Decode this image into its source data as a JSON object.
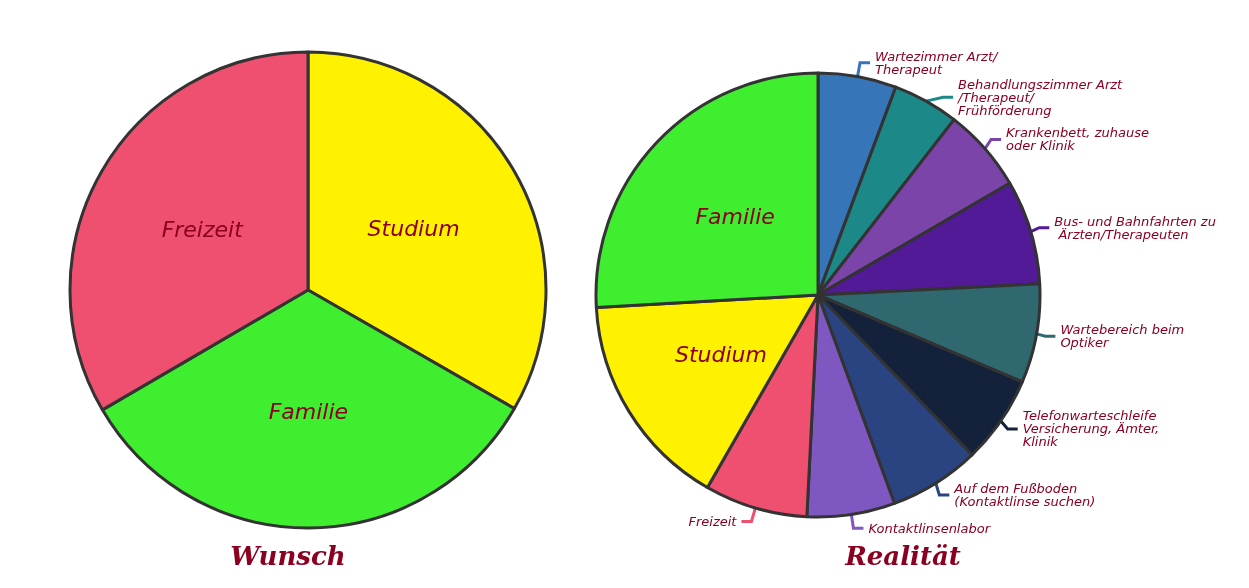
{
  "chart_data": [
    {
      "type": "pie",
      "title": "Wunsch",
      "categories": [
        "Studium",
        "Familie",
        "Freizeit"
      ],
      "values": [
        33.3,
        33.3,
        33.4
      ],
      "colors": [
        "#fff200",
        "#40ee30",
        "#f05070"
      ]
    },
    {
      "type": "pie",
      "title": "Realität",
      "categories": [
        "Wartezimmer Arzt/Therapeut",
        "Behandlungszimmer Arzt/Therapeut/Frühförderung",
        "Krankenbett, zuhause oder Klinik",
        "Bus- und Bahnfahrten zu Ärzten/Therapeuten",
        "Wartebereich beim Optiker",
        "Telefonwarteschleife Versicherung, Ämter, Klinik",
        "Auf dem Fußboden (Kontaktlinse suchen)",
        "Kontaktlinsenlabor",
        "Freizeit",
        "Studium",
        "Familie"
      ],
      "values": [
        5.7,
        4.8,
        6.1,
        7.6,
        7.2,
        6.4,
        6.6,
        6.4,
        7.5,
        15.8,
        25.9
      ],
      "colors": [
        "#3575b8",
        "#1c8888",
        "#7a44a8",
        "#521a96",
        "#306870",
        "#13213a",
        "#2a4482",
        "#7e58c0",
        "#f05070",
        "#fff200",
        "#40ee30"
      ]
    }
  ]
}
